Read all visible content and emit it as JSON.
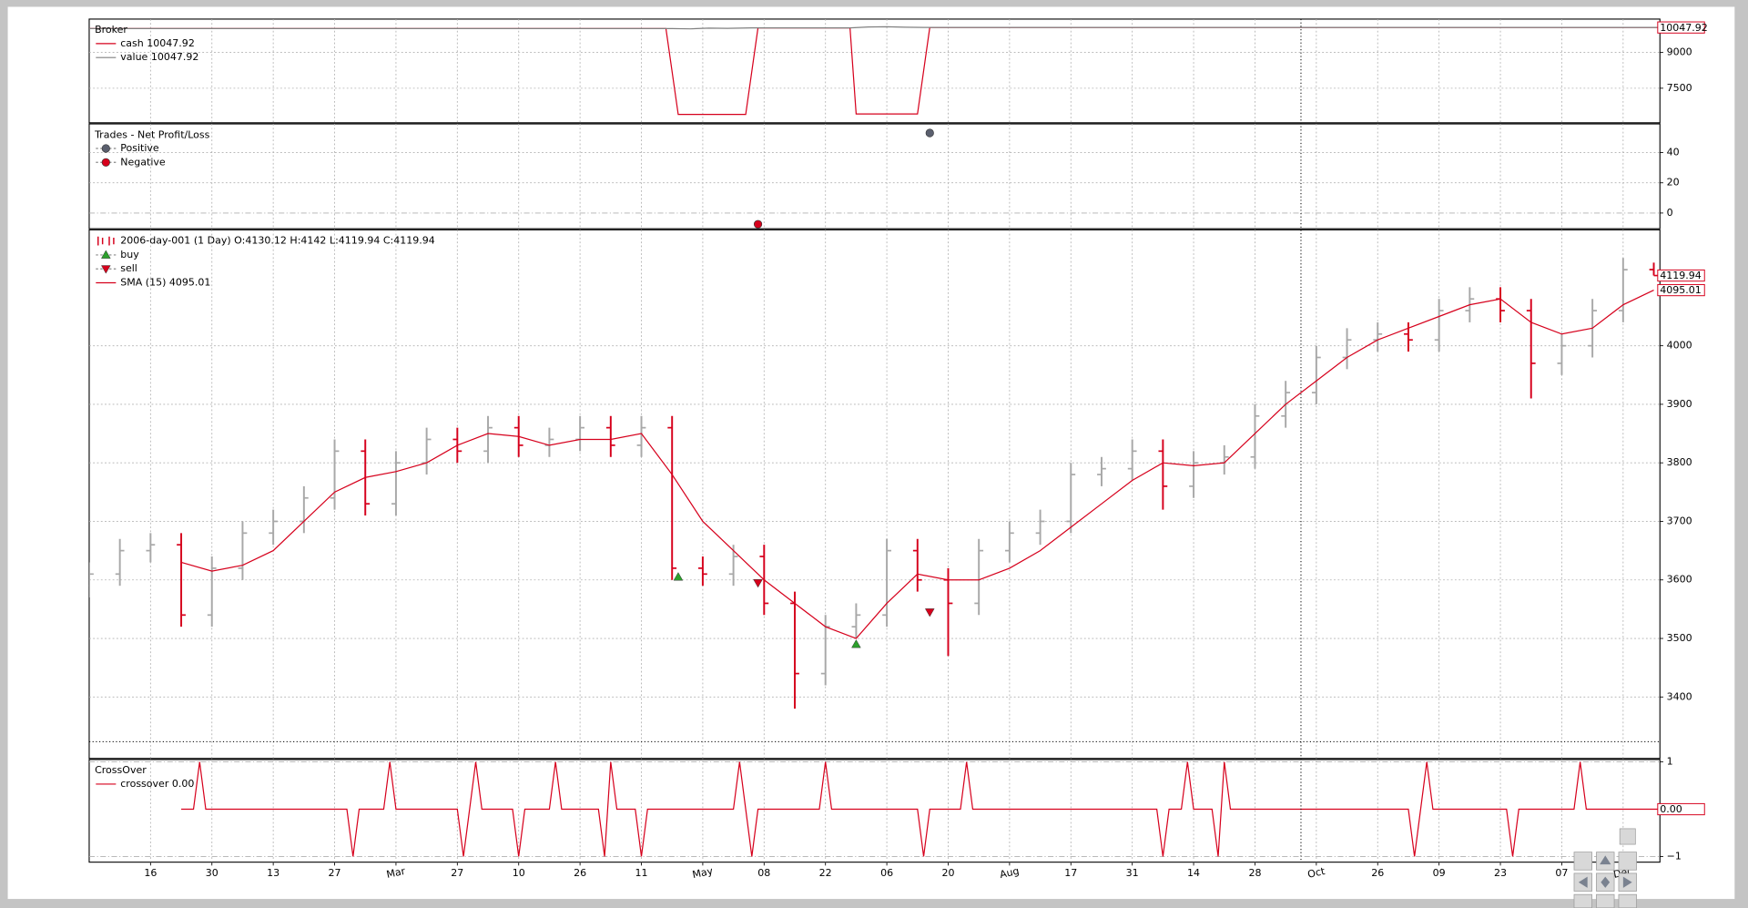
{
  "chart_data": [
    {
      "type": "line",
      "title": "Broker",
      "xlim": [
        0,
        256
      ],
      "ylim": [
        6050,
        10400
      ],
      "yticks": [
        7500,
        9000
      ],
      "grid": true,
      "series": [
        {
          "name": "cash 10047.92",
          "color": "#d6001c",
          "end_box": true,
          "x": [
            0,
            94,
            96,
            107,
            109,
            124,
            125,
            135,
            137,
            256
          ],
          "values": [
            10000,
            10000,
            6400,
            6400,
            10030,
            10030,
            6420,
            6420,
            10047.92,
            10047.92
          ]
        },
        {
          "name": "value 10047.92",
          "color": "#808080",
          "x": [
            0,
            95,
            98,
            101,
            104,
            108,
            124,
            127,
            130,
            133,
            136,
            256
          ],
          "values": [
            10000,
            10000,
            9990,
            10020,
            10010,
            10030,
            10030,
            10070,
            10080,
            10060,
            10047.92,
            10047.92
          ]
        }
      ]
    },
    {
      "type": "scatter",
      "title": "Trades - Net Profit/Loss",
      "xlim": [
        0,
        256
      ],
      "ylim": [
        -10.4,
        59
      ],
      "yticks": [
        0,
        20,
        40
      ],
      "grid": true,
      "series": [
        {
          "name": "Positive",
          "color": "#5a5f6e",
          "x": [
            137
          ],
          "values": [
            53
          ]
        },
        {
          "name": "Negative",
          "color": "#d6001c",
          "x": [
            109
          ],
          "values": [
            -7.4
          ]
        }
      ]
    },
    {
      "type": "ohlc",
      "xlim": [
        0,
        256
      ],
      "ylim": [
        3295,
        4198
      ],
      "yticks": [
        3400,
        3500,
        3600,
        3700,
        3800,
        3900,
        4000
      ],
      "grid": true,
      "up_color": "#a8a8a8",
      "down_color": "#d6001c",
      "series": [
        {
          "name": "2006-day-001 (1 Day) O:4130.12 H:4142 L:4119.94 C:4119.94",
          "type": "ohlc",
          "end_box": true,
          "x": [
            0,
            5,
            10,
            15,
            20,
            25,
            30,
            35,
            40,
            45,
            50,
            55,
            60,
            65,
            70,
            75,
            80,
            85,
            90,
            95,
            100,
            105,
            110,
            115,
            120,
            125,
            130,
            135,
            140,
            145,
            150,
            155,
            160,
            165,
            170,
            175,
            180,
            185,
            190,
            195,
            200,
            205,
            210,
            215,
            220,
            225,
            230,
            235,
            240,
            245,
            250,
            255
          ],
          "open": [
            3590,
            3610,
            3650,
            3660,
            3540,
            3620,
            3680,
            3700,
            3740,
            3820,
            3730,
            3800,
            3840,
            3820,
            3860,
            3830,
            3840,
            3860,
            3830,
            3860,
            3620,
            3610,
            3640,
            3560,
            3440,
            3520,
            3540,
            3650,
            3600,
            3560,
            3650,
            3680,
            3700,
            3780,
            3790,
            3820,
            3760,
            3800,
            3810,
            3880,
            3920,
            3980,
            4010,
            4020,
            4010,
            4060,
            4080,
            4060,
            3970,
            4000,
            4060,
            4130.12
          ],
          "high": [
            3630,
            3670,
            3680,
            3680,
            3640,
            3700,
            3720,
            3760,
            3840,
            3840,
            3820,
            3860,
            3860,
            3880,
            3880,
            3860,
            3880,
            3880,
            3880,
            3880,
            3640,
            3660,
            3660,
            3580,
            3540,
            3560,
            3670,
            3670,
            3620,
            3670,
            3700,
            3720,
            3800,
            3810,
            3840,
            3840,
            3820,
            3830,
            3900,
            3940,
            4000,
            4030,
            4040,
            4040,
            4080,
            4100,
            4100,
            4080,
            4020,
            4080,
            4150,
            4142
          ],
          "low": [
            3570,
            3590,
            3630,
            3520,
            3520,
            3600,
            3660,
            3680,
            3720,
            3710,
            3710,
            3780,
            3800,
            3800,
            3810,
            3810,
            3820,
            3810,
            3810,
            3600,
            3590,
            3590,
            3540,
            3380,
            3420,
            3500,
            3520,
            3580,
            3470,
            3540,
            3630,
            3660,
            3680,
            3760,
            3770,
            3720,
            3740,
            3780,
            3790,
            3860,
            3900,
            3960,
            3990,
            3990,
            3990,
            4040,
            4040,
            3910,
            3950,
            3980,
            4040,
            4119.94
          ],
          "close": [
            3610,
            3650,
            3660,
            3540,
            3620,
            3680,
            3700,
            3740,
            3820,
            3730,
            3800,
            3840,
            3820,
            3860,
            3830,
            3840,
            3860,
            3830,
            3860,
            3620,
            3610,
            3640,
            3560,
            3440,
            3520,
            3540,
            3650,
            3600,
            3560,
            3650,
            3680,
            3700,
            3780,
            3790,
            3820,
            3760,
            3800,
            3810,
            3880,
            3920,
            3980,
            4010,
            4020,
            4010,
            4060,
            4080,
            4060,
            3970,
            4000,
            4060,
            4130,
            4119.94
          ]
        },
        {
          "name": "buy",
          "type": "marker",
          "shape": "up",
          "color": "#2ca02c",
          "x": [
            96,
            125
          ],
          "values": [
            3605,
            3490
          ]
        },
        {
          "name": "sell",
          "type": "marker",
          "shape": "down",
          "color": "#d6001c",
          "x": [
            109,
            137
          ],
          "values": [
            3595,
            3545
          ]
        },
        {
          "name": "SMA (15) 4095.01",
          "type": "line",
          "color": "#d6001c",
          "end_box": true,
          "x": [
            15,
            20,
            25,
            30,
            35,
            40,
            45,
            50,
            55,
            60,
            65,
            70,
            75,
            80,
            85,
            90,
            95,
            100,
            105,
            110,
            115,
            120,
            125,
            130,
            135,
            140,
            145,
            150,
            155,
            160,
            165,
            170,
            175,
            180,
            185,
            190,
            195,
            200,
            205,
            210,
            215,
            220,
            225,
            230,
            235,
            240,
            245,
            250,
            255
          ],
          "values": [
            3630,
            3615,
            3625,
            3650,
            3700,
            3750,
            3775,
            3785,
            3800,
            3830,
            3850,
            3845,
            3830,
            3840,
            3840,
            3850,
            3780,
            3700,
            3650,
            3600,
            3560,
            3520,
            3500,
            3560,
            3610,
            3600,
            3600,
            3620,
            3650,
            3690,
            3730,
            3770,
            3800,
            3795,
            3800,
            3850,
            3900,
            3940,
            3980,
            4010,
            4030,
            4050,
            4070,
            4080,
            4040,
            4020,
            4030,
            4070,
            4095.01
          ]
        }
      ]
    },
    {
      "type": "line",
      "title": "CrossOver",
      "xlim": [
        0,
        256
      ],
      "ylim": [
        -1.12,
        1.05
      ],
      "yticks": [
        1,
        {
          "value": -1,
          "label": "−1"
        }
      ],
      "grid": true,
      "xticks": [
        {
          "value": 10,
          "label": "16"
        },
        {
          "value": 20,
          "label": "30"
        },
        {
          "value": 30,
          "label": "13"
        },
        {
          "value": 40,
          "label": "27"
        },
        {
          "value": 50,
          "label": "Mar"
        },
        {
          "value": 60,
          "label": "27"
        },
        {
          "value": 70,
          "label": "10"
        },
        {
          "value": 80,
          "label": "26"
        },
        {
          "value": 90,
          "label": "11"
        },
        {
          "value": 100,
          "label": "May"
        },
        {
          "value": 110,
          "label": "08"
        },
        {
          "value": 120,
          "label": "22"
        },
        {
          "value": 130,
          "label": "06"
        },
        {
          "value": 140,
          "label": "20"
        },
        {
          "value": 150,
          "label": "Aug"
        },
        {
          "value": 160,
          "label": "17"
        },
        {
          "value": 170,
          "label": "31"
        },
        {
          "value": 180,
          "label": "14"
        },
        {
          "value": 190,
          "label": "28"
        },
        {
          "value": 200,
          "label": "Oct"
        },
        {
          "value": 210,
          "label": "26"
        },
        {
          "value": 220,
          "label": "09"
        },
        {
          "value": 230,
          "label": "23"
        },
        {
          "value": 240,
          "label": "07"
        },
        {
          "value": 250,
          "label": "Dec"
        }
      ],
      "series": [
        {
          "name": "crossover 0.00",
          "color": "#d6001c",
          "end_box": true,
          "end_label": "0.00",
          "x": [
            15,
            17,
            18,
            19,
            42,
            43,
            44,
            48,
            49,
            50,
            60,
            61,
            62,
            63,
            64,
            69,
            70,
            71,
            75,
            76,
            77,
            83,
            84,
            85,
            86,
            89,
            90,
            91,
            105,
            106,
            107,
            108,
            109,
            119,
            120,
            121,
            135,
            136,
            137,
            142,
            143,
            144,
            174,
            175,
            176,
            178,
            179,
            180,
            183,
            184,
            185,
            186,
            215,
            216,
            217,
            218,
            219,
            231,
            232,
            233,
            242,
            243,
            244,
            256
          ],
          "values": [
            0,
            0,
            1,
            0,
            0,
            -1,
            0,
            0,
            1,
            0,
            0,
            -1,
            0,
            1,
            0,
            0,
            -1,
            0,
            0,
            1,
            0,
            0,
            -1,
            1,
            0,
            0,
            -1,
            0,
            0,
            1,
            0,
            -1,
            0,
            0,
            1,
            0,
            0,
            -1,
            0,
            0,
            1,
            0,
            0,
            -1,
            0,
            0,
            1,
            0,
            0,
            -1,
            1,
            0,
            0,
            -1,
            0,
            1,
            0,
            0,
            -1,
            0,
            0,
            1,
            0,
            0
          ]
        }
      ]
    }
  ]
}
